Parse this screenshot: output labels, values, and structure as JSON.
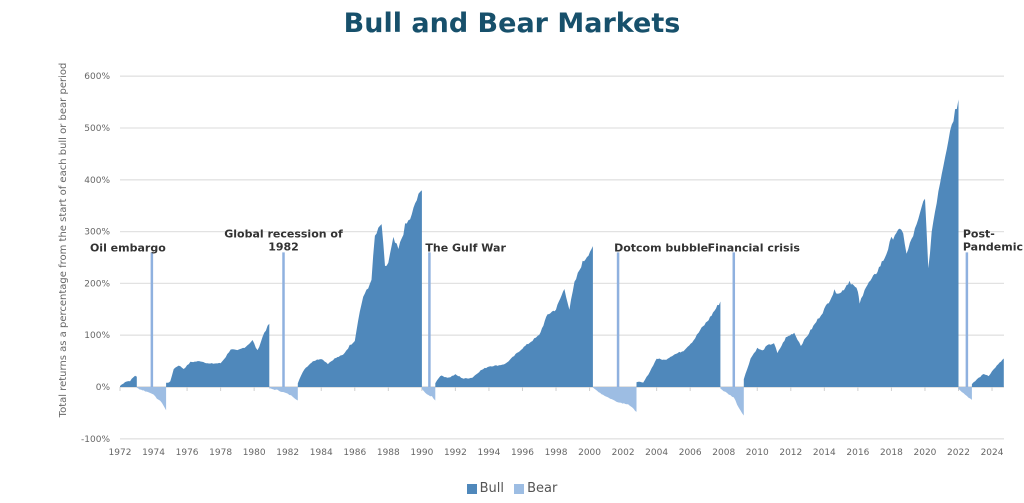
{
  "chart_data": {
    "type": "area",
    "title": "Bull and Bear Markets",
    "xlabel": "",
    "ylabel": "Total returns as a percentage from the start of each bull or bear period",
    "xlim": [
      1972,
      2024.7
    ],
    "ylim": [
      -100,
      600
    ],
    "yticks": [
      -100,
      0,
      100,
      200,
      300,
      400,
      500,
      600
    ],
    "ytick_labels": [
      "-100%",
      "0%",
      "100%",
      "200%",
      "300%",
      "400%",
      "500%",
      "600%"
    ],
    "xticks": [
      1972,
      1974,
      1976,
      1978,
      1980,
      1982,
      1984,
      1986,
      1988,
      1990,
      1992,
      1994,
      1996,
      1998,
      2000,
      2002,
      2004,
      2006,
      2008,
      2010,
      2012,
      2014,
      2016,
      2018,
      2020,
      2022,
      2024
    ],
    "grid": true,
    "legend": {
      "placement": "bottom",
      "entries": [
        "Bull",
        "Bear"
      ]
    },
    "colors": {
      "Bull": "#4f88bb",
      "Bear": "#9dbde3",
      "title": "#17506b"
    },
    "periods": [
      {
        "type": "Bull",
        "points": [
          [
            1972.0,
            2
          ],
          [
            1972.3,
            10
          ],
          [
            1972.6,
            12
          ],
          [
            1972.9,
            22
          ],
          [
            1973.0,
            20
          ]
        ]
      },
      {
        "type": "Bear",
        "points": [
          [
            1973.0,
            -2
          ],
          [
            1973.5,
            -8
          ],
          [
            1973.9,
            -12
          ],
          [
            1974.2,
            -22
          ],
          [
            1974.5,
            -30
          ],
          [
            1974.75,
            -45
          ]
        ]
      },
      {
        "type": "Bull",
        "points": [
          [
            1974.75,
            8
          ],
          [
            1975.0,
            10
          ],
          [
            1975.2,
            35
          ],
          [
            1975.5,
            42
          ],
          [
            1975.8,
            35
          ],
          [
            1976.2,
            48
          ],
          [
            1976.8,
            50
          ],
          [
            1977.3,
            45
          ],
          [
            1978.0,
            46
          ],
          [
            1978.3,
            58
          ],
          [
            1978.6,
            73
          ],
          [
            1979.0,
            70
          ],
          [
            1979.5,
            78
          ],
          [
            1979.9,
            90
          ],
          [
            1980.2,
            70
          ],
          [
            1980.6,
            105
          ],
          [
            1980.9,
            122
          ]
        ]
      },
      {
        "type": "Bear",
        "points": [
          [
            1980.9,
            -3
          ],
          [
            1981.4,
            -6
          ],
          [
            1981.9,
            -12
          ],
          [
            1982.3,
            -18
          ],
          [
            1982.6,
            -26
          ]
        ]
      },
      {
        "type": "Bull",
        "points": [
          [
            1982.6,
            8
          ],
          [
            1983.0,
            35
          ],
          [
            1983.5,
            50
          ],
          [
            1984.0,
            55
          ],
          [
            1984.4,
            45
          ],
          [
            1984.8,
            55
          ],
          [
            1985.3,
            62
          ],
          [
            1985.7,
            80
          ],
          [
            1986.0,
            90
          ],
          [
            1986.2,
            130
          ],
          [
            1986.5,
            175
          ],
          [
            1986.8,
            190
          ],
          [
            1987.0,
            210
          ],
          [
            1987.2,
            290
          ],
          [
            1987.6,
            315
          ],
          [
            1987.8,
            230
          ],
          [
            1988.0,
            240
          ],
          [
            1988.3,
            285
          ],
          [
            1988.6,
            265
          ],
          [
            1989.0,
            310
          ],
          [
            1989.4,
            330
          ],
          [
            1989.6,
            355
          ],
          [
            1990.0,
            380
          ]
        ]
      },
      {
        "type": "Bear",
        "points": [
          [
            1990.0,
            -3
          ],
          [
            1990.3,
            -15
          ],
          [
            1990.6,
            -18
          ],
          [
            1990.8,
            -26
          ]
        ]
      },
      {
        "type": "Bull",
        "points": [
          [
            1990.8,
            8
          ],
          [
            1991.1,
            22
          ],
          [
            1991.6,
            18
          ],
          [
            1992.0,
            24
          ],
          [
            1992.5,
            16
          ],
          [
            1993.0,
            18
          ],
          [
            1993.5,
            32
          ],
          [
            1994.0,
            40
          ],
          [
            1994.6,
            42
          ],
          [
            1995.0,
            45
          ],
          [
            1995.5,
            60
          ],
          [
            1996.0,
            75
          ],
          [
            1996.6,
            90
          ],
          [
            1997.0,
            100
          ],
          [
            1997.5,
            140
          ],
          [
            1998.0,
            150
          ],
          [
            1998.5,
            190
          ],
          [
            1998.8,
            150
          ],
          [
            1999.1,
            200
          ],
          [
            1999.5,
            235
          ],
          [
            2000.2,
            272
          ]
        ]
      },
      {
        "type": "Bear",
        "points": [
          [
            2000.2,
            -2
          ],
          [
            2000.8,
            -15
          ],
          [
            2001.4,
            -25
          ],
          [
            2001.8,
            -30
          ],
          [
            2002.3,
            -33
          ],
          [
            2002.8,
            -48
          ]
        ]
      },
      {
        "type": "Bull",
        "points": [
          [
            2002.8,
            10
          ],
          [
            2003.2,
            8
          ],
          [
            2003.6,
            30
          ],
          [
            2004.0,
            55
          ],
          [
            2004.5,
            52
          ],
          [
            2005.0,
            62
          ],
          [
            2005.6,
            70
          ],
          [
            2006.2,
            90
          ],
          [
            2006.6,
            110
          ],
          [
            2007.1,
            130
          ],
          [
            2007.8,
            165
          ]
        ]
      },
      {
        "type": "Bear",
        "points": [
          [
            2007.8,
            -3
          ],
          [
            2008.2,
            -12
          ],
          [
            2008.6,
            -20
          ],
          [
            2008.9,
            -40
          ],
          [
            2009.2,
            -55
          ]
        ]
      },
      {
        "type": "Bull",
        "points": [
          [
            2009.2,
            15
          ],
          [
            2009.6,
            55
          ],
          [
            2010.0,
            75
          ],
          [
            2010.3,
            70
          ],
          [
            2010.6,
            80
          ],
          [
            2011.0,
            85
          ],
          [
            2011.2,
            65
          ],
          [
            2011.7,
            95
          ],
          [
            2012.2,
            105
          ],
          [
            2012.6,
            80
          ],
          [
            2013.0,
            100
          ],
          [
            2013.6,
            130
          ],
          [
            2014.0,
            150
          ],
          [
            2014.6,
            185
          ],
          [
            2015.0,
            182
          ],
          [
            2015.5,
            205
          ],
          [
            2016.0,
            185
          ],
          [
            2016.1,
            160
          ],
          [
            2016.4,
            190
          ],
          [
            2017.0,
            215
          ],
          [
            2017.6,
            250
          ],
          [
            2018.0,
            285
          ],
          [
            2018.3,
            300
          ],
          [
            2018.7,
            300
          ],
          [
            2018.9,
            255
          ],
          [
            2019.2,
            285
          ],
          [
            2019.6,
            320
          ],
          [
            2020.0,
            370
          ],
          [
            2020.2,
            225
          ],
          [
            2020.4,
            300
          ],
          [
            2020.8,
            380
          ],
          [
            2021.2,
            450
          ],
          [
            2021.6,
            510
          ],
          [
            2022.0,
            555
          ]
        ]
      },
      {
        "type": "Bear",
        "points": [
          [
            2022.0,
            -3
          ],
          [
            2022.3,
            -12
          ],
          [
            2022.6,
            -20
          ],
          [
            2022.8,
            -25
          ]
        ]
      },
      {
        "type": "Bull",
        "points": [
          [
            2022.8,
            5
          ],
          [
            2023.1,
            15
          ],
          [
            2023.5,
            25
          ],
          [
            2023.8,
            22
          ],
          [
            2024.2,
            38
          ],
          [
            2024.7,
            55
          ]
        ]
      }
    ],
    "annotations": [
      {
        "label": "Oil embargo",
        "lines": [
          "Oil embargo"
        ],
        "x": 1973.9,
        "line_top": 260
      },
      {
        "label": "Global recession of 1982",
        "lines": [
          "Global recession of",
          "1982"
        ],
        "x": 1981.75,
        "line_top": 260
      },
      {
        "label": "The Gulf War",
        "lines": [
          "The Gulf War"
        ],
        "x": 1990.45,
        "line_top": 260
      },
      {
        "label": "Dotcom bubble",
        "lines": [
          "Dotcom bubble"
        ],
        "x": 2001.7,
        "line_top": 260
      },
      {
        "label": "Financial crisis",
        "lines": [
          "Financial crisis"
        ],
        "x": 2008.6,
        "line_top": 260
      },
      {
        "label": "Post-Pandemic",
        "lines": [
          "Post-",
          "Pandemic"
        ],
        "x": 2022.5,
        "line_top": 260
      }
    ]
  }
}
